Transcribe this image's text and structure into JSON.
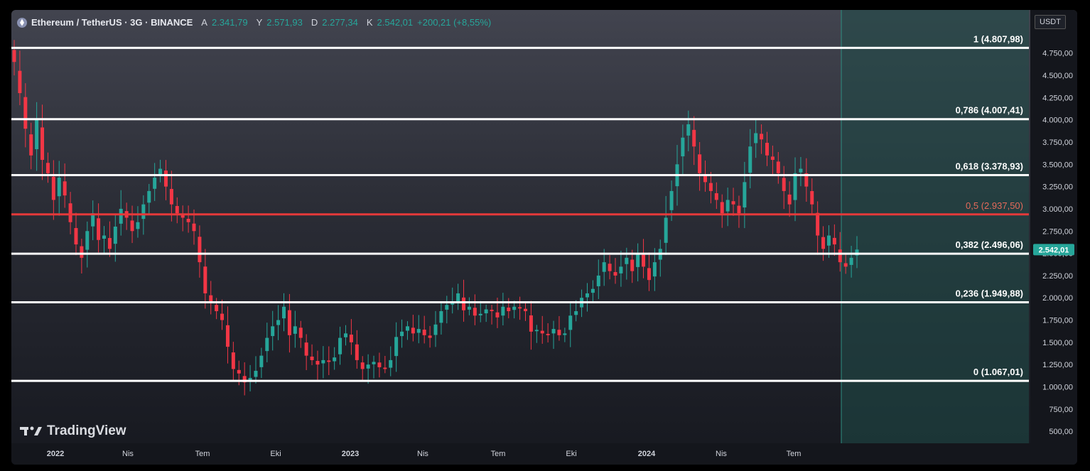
{
  "header": {
    "symbol": "Ethereum / TetherUS · 3G · BINANCE",
    "open_label": "A",
    "open": "2.341,79",
    "high_label": "Y",
    "high": "2.571,93",
    "low_label": "D",
    "low": "2.277,34",
    "close_label": "K",
    "close": "2.542,01",
    "change": "+200,21 (+8,55%)"
  },
  "currency_label": "USDT",
  "watermark": "TradingView",
  "colors": {
    "up": "#26a69a",
    "down": "#f23645",
    "fib_line": "#ffffff",
    "fib_mid": "#e5393a",
    "projection": "#1f4d48"
  },
  "chart_data": {
    "type": "candlestick",
    "y_axis": {
      "min": 400,
      "max": 5100,
      "ticks": [
        500,
        750,
        1000,
        1250,
        1500,
        1750,
        2000,
        2250,
        2500,
        2750,
        3000,
        3250,
        3500,
        3750,
        4000,
        4250,
        4500,
        4750
      ],
      "tick_labels": [
        "500,00",
        "750,00",
        "1.000,00",
        "1.250,00",
        "1.500,00",
        "1.750,00",
        "2.000,00",
        "2.250,00",
        "2.500,00",
        "2.750,00",
        "3.000,00",
        "3.250,00",
        "3.500,00",
        "3.750,00",
        "4.000,00",
        "4.250,00",
        "4.500,00",
        "4.750,00"
      ]
    },
    "x_axis": {
      "labels": [
        "2022",
        "Nis",
        "Tem",
        "Eki",
        "2023",
        "Nis",
        "Tem",
        "Eki",
        "2024",
        "Nis",
        "Tem"
      ]
    },
    "last_price": 2542.01,
    "last_price_label": "2.542,01",
    "fib_levels": [
      {
        "ratio": 1,
        "value": 4807.98,
        "label": "1 (4.807,98)"
      },
      {
        "ratio": 0.786,
        "value": 4007.41,
        "label": "0,786 (4.007,41)"
      },
      {
        "ratio": 0.618,
        "value": 3378.93,
        "label": "0,618 (3.378,93)"
      },
      {
        "ratio": 0.5,
        "value": 2937.5,
        "label": "0,5 (2.937,50)"
      },
      {
        "ratio": 0.382,
        "value": 2496.06,
        "label": "0,382 (2.496,06)"
      },
      {
        "ratio": 0.236,
        "value": 1949.88,
        "label": "0,236 (1.949,88)"
      },
      {
        "ratio": 0,
        "value": 1067.01,
        "label": "0 (1.067,01)"
      }
    ],
    "closes": [
      4650,
      4300,
      3900,
      3600,
      4000,
      3550,
      3400,
      3100,
      3350,
      3150,
      2850,
      2600,
      2450,
      2750,
      2950,
      2650,
      2700,
      2550,
      2800,
      3000,
      2900,
      2750,
      2850,
      3050,
      3200,
      3350,
      3450,
      3250,
      3050,
      2950,
      2900,
      2850,
      2750,
      2400,
      2050,
      1950,
      1850,
      1750,
      1450,
      1200,
      1150,
      1050,
      1100,
      1180,
      1350,
      1550,
      1680,
      1750,
      1900,
      1580,
      1680,
      1550,
      1350,
      1300,
      1250,
      1300,
      1280,
      1330,
      1550,
      1600,
      1500,
      1300,
      1200,
      1250,
      1280,
      1220,
      1200,
      1300,
      1560,
      1620,
      1680,
      1600,
      1650,
      1580,
      1550,
      1700,
      1850,
      1920,
      1950,
      2050,
      1860,
      1900,
      1800,
      1820,
      1870,
      1850,
      1780,
      1900,
      1850,
      1900,
      1880,
      1850,
      1620,
      1640,
      1600,
      1580,
      1650,
      1580,
      1600,
      1800,
      1850,
      2000,
      2050,
      2100,
      2250,
      2400,
      2300,
      2250,
      2350,
      2450,
      2300,
      2500,
      2350,
      2200,
      2400,
      2550,
      2900,
      3200,
      3500,
      3800,
      3950,
      3700,
      3400,
      3300,
      3200,
      3100,
      2950,
      3100,
      3050,
      2950,
      3300,
      3700,
      3850,
      3780,
      3600,
      3550,
      3400,
      3200,
      3050,
      3400,
      3450,
      3250,
      3050,
      2700,
      2550,
      2700,
      2600,
      2400,
      2350,
      2450,
      2542.01
    ]
  }
}
